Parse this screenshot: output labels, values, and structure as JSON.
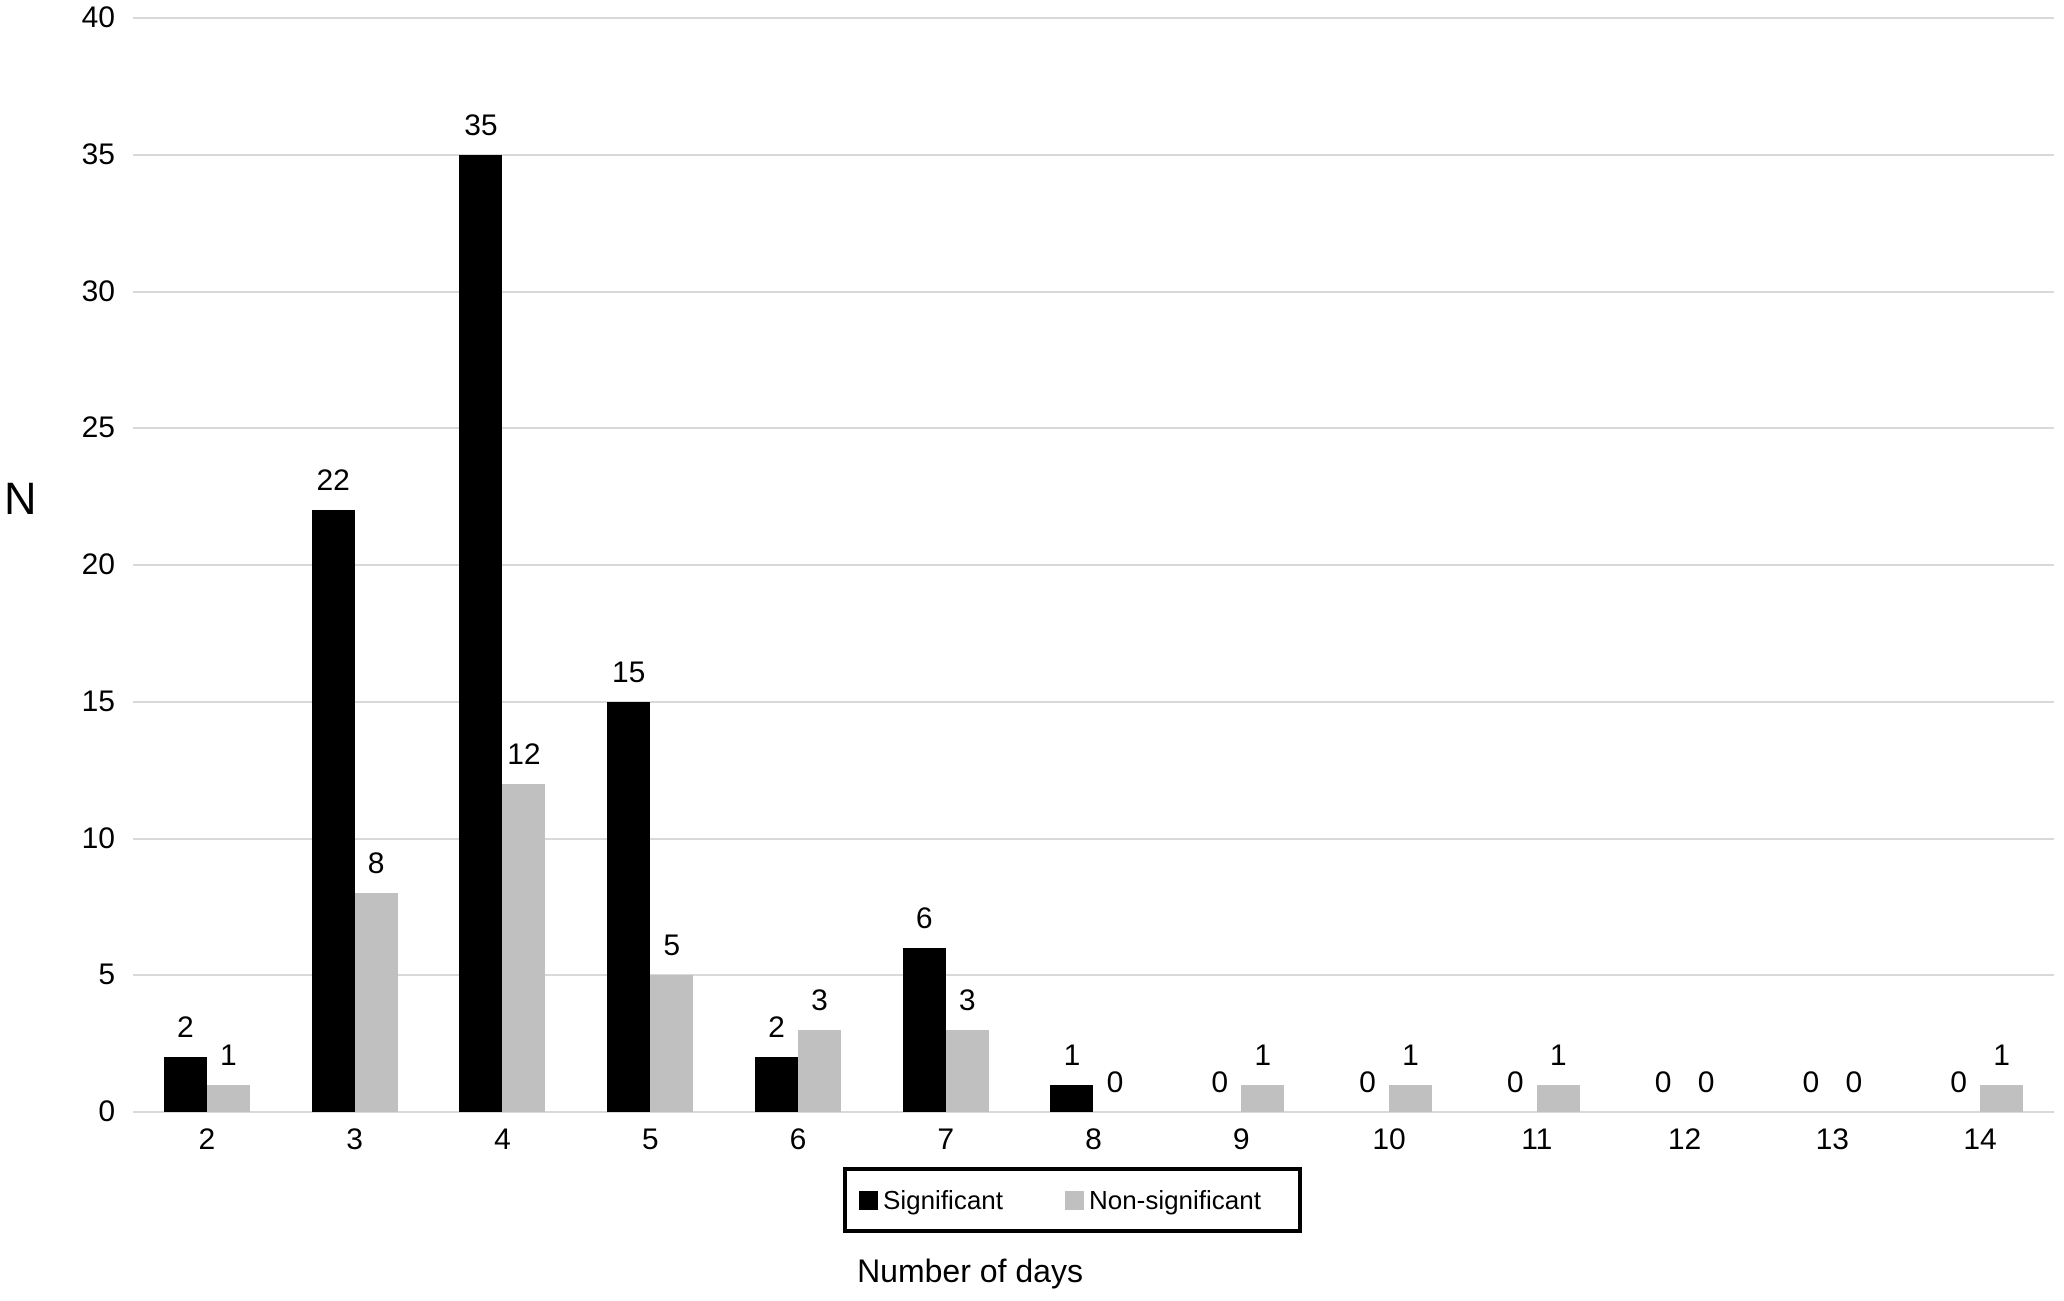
{
  "chart_data": {
    "type": "bar",
    "title": "",
    "xlabel": "Number of days",
    "ylabel": "N",
    "categories": [
      "2",
      "3",
      "4",
      "5",
      "6",
      "7",
      "8",
      "9",
      "10",
      "11",
      "12",
      "13",
      "14"
    ],
    "series": [
      {
        "name": "Significant",
        "color": "#000000",
        "values": [
          2,
          22,
          35,
          15,
          2,
          6,
          1,
          0,
          0,
          0,
          0,
          0,
          0
        ]
      },
      {
        "name": "Non-significant",
        "color": "#c0c0c0",
        "values": [
          1,
          8,
          12,
          5,
          3,
          3,
          0,
          1,
          1,
          1,
          0,
          0,
          1
        ]
      }
    ],
    "ylim": [
      0,
      40
    ],
    "ytick_step": 5,
    "yticks": [
      0,
      5,
      10,
      15,
      20,
      25,
      30,
      35,
      40
    ],
    "grid": "horizontal",
    "gridline_color": "#d9d9d9",
    "data_labels": true,
    "legend_position": "bottom-center"
  }
}
